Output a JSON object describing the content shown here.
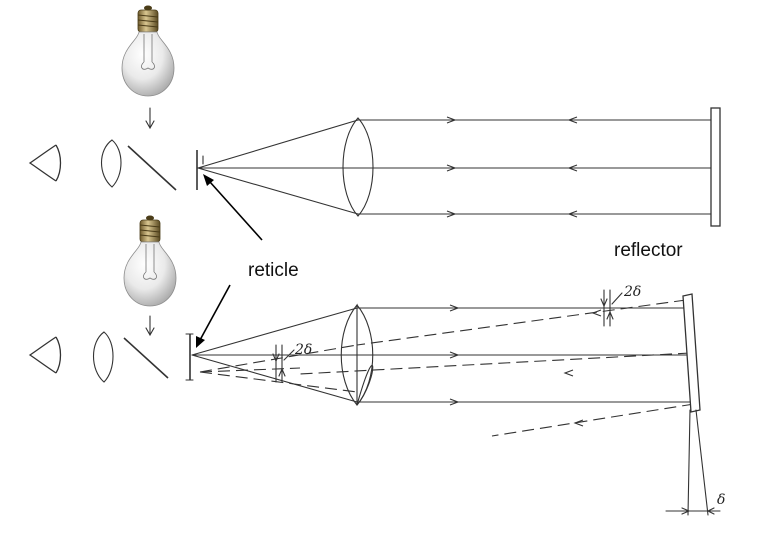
{
  "labels": {
    "reflector": "reflector",
    "reticle": "reticle",
    "two_delta_top": "2δ",
    "two_delta_left": "2δ",
    "delta": "δ"
  },
  "icons": {
    "eye": "eye-icon",
    "bulb": "light-bulb-icon",
    "lens": "lens-icon",
    "beam_splitter": "beam-splitter-icon"
  },
  "colors": {
    "ink": "#333333",
    "background": "#ffffff"
  }
}
